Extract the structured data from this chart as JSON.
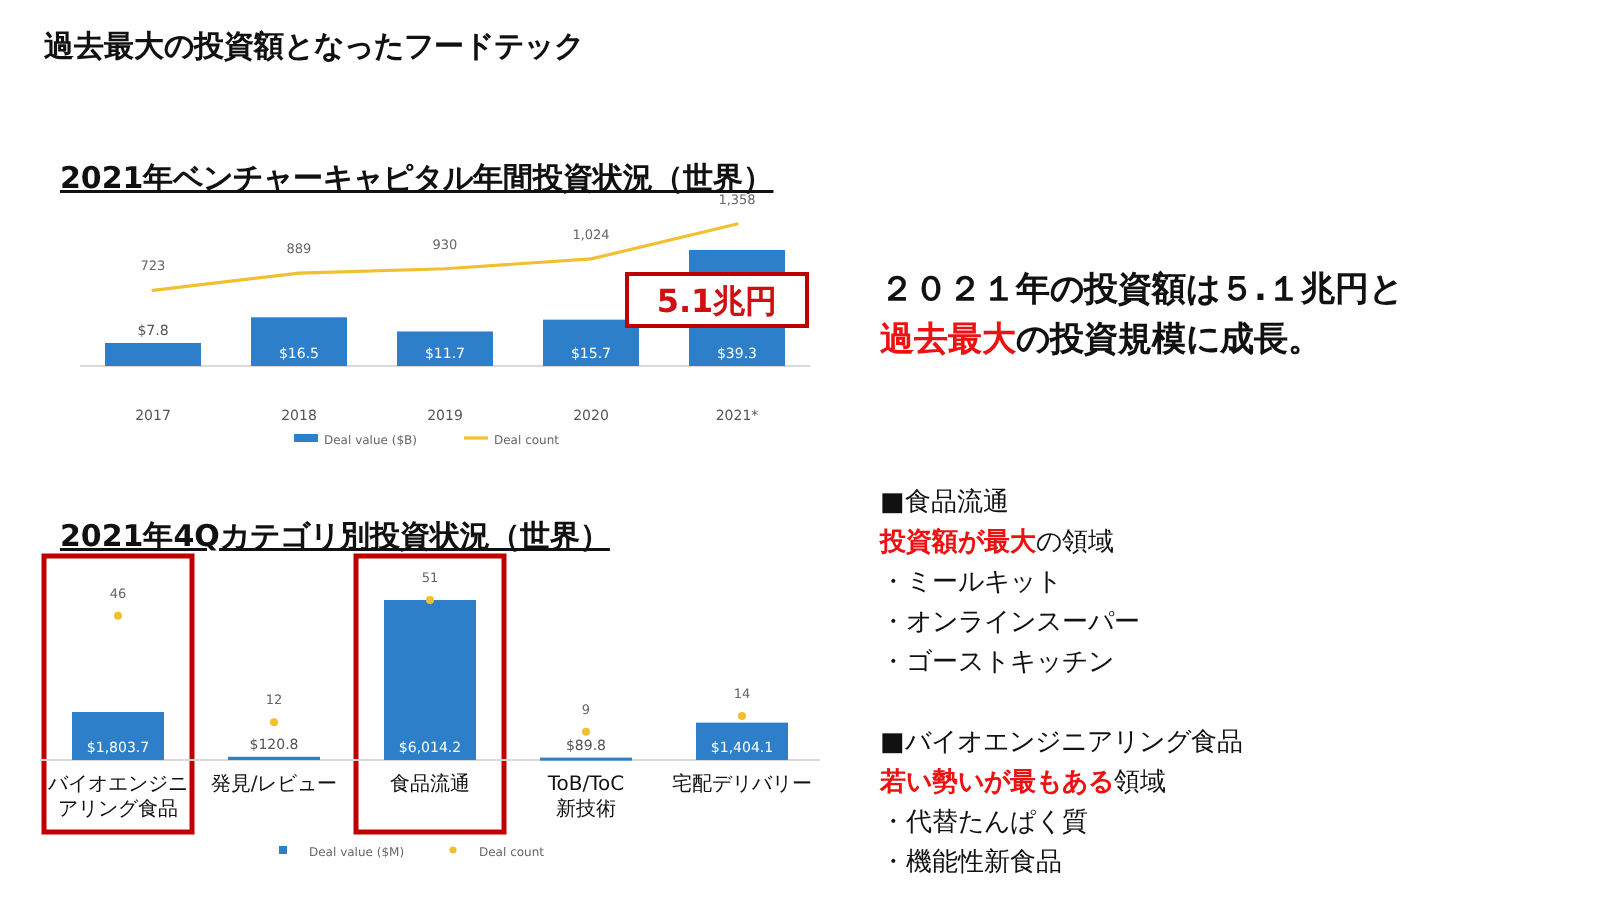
{
  "chart_data": [
    {
      "type": "bar",
      "title": "2021年ベンチャーキャピタル年間投資状況（世界）",
      "categories": [
        "2017",
        "2018",
        "2019",
        "2020",
        "2021*"
      ],
      "legend": "bottom",
      "series": [
        {
          "name": "Deal value ($B)",
          "type": "bar",
          "color": "#2e7fc9",
          "values": [
            7.8,
            16.5,
            11.7,
            15.7,
            39.3
          ],
          "value_labels": [
            "$7.8",
            "$16.5",
            "$11.7",
            "$15.7",
            "$39.3"
          ]
        },
        {
          "name": "Deal count",
          "type": "line",
          "axis": "y2",
          "color": "#f0c030",
          "values": [
            723,
            889,
            930,
            1024,
            1358
          ],
          "value_labels": [
            "723",
            "889",
            "930",
            "1,024",
            "1,358"
          ]
        }
      ],
      "annotations": [
        "5.1兆円"
      ]
    },
    {
      "type": "bar",
      "title": "2021年4Qカテゴリ別投資状況（世界）",
      "categories": [
        "バイオエンジニアリング食品",
        "発見/レビュー",
        "食品流通",
        "ToB/ToC 新技術",
        "宅配デリバリー"
      ],
      "legend": "bottom",
      "marker": "circle",
      "series": [
        {
          "name": "Deal value ($M)",
          "type": "bar",
          "color": "#2e7fc9",
          "values": [
            1803.7,
            120.8,
            6014.2,
            89.8,
            1404.1
          ],
          "value_labels": [
            "$1,803.7",
            "$120.8",
            "$6,014.2",
            "$89.8",
            "$1,404.1"
          ]
        },
        {
          "name": "Deal count",
          "type": "scatter",
          "axis": "y2",
          "color": "#f0c030",
          "values": [
            46,
            12,
            51,
            9,
            14
          ],
          "value_labels": [
            "46",
            "12",
            "51",
            "9",
            "14"
          ]
        }
      ]
    },
    {
      "type": "other",
      "title": "過去最大の投資額となったフードテック",
      "annotations": [
        "２０２１年の投資額は５.１兆円と",
        "\n過去最大",
        "の投資規模に成長。",
        "\n\n■食品流通",
        "\n投資額が最大",
        "の領域",
        "\n・ミールキット",
        "\n・オンラインスーパー",
        "\n・ゴーストキッチン",
        "\n\n■バイオエンジニアリング食品",
        "\n若い勢いが最もある",
        "領域",
        "\n・代替たんぱく質",
        "\n・機能性新食品"
      ],
      "colors": [
        "#111111",
        "#ee1111",
        "#111111",
        "#111111",
        "#ee1111",
        "#111111",
        "#111111",
        "#111111",
        "#111111",
        "#111111",
        "#ee1111",
        "#111111",
        "#111111",
        "#111111"
      ]
    }
  ]
}
